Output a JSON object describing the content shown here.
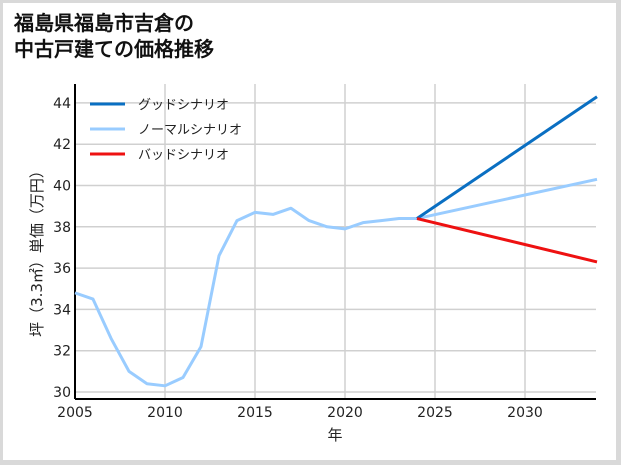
{
  "title_line1": "福島県福島市吉倉の",
  "title_line2": "中古戸建ての価格推移",
  "chart_data": {
    "type": "line",
    "title": "福島県福島市吉倉の中古戸建ての価格推移",
    "xlabel": "年",
    "ylabel": "坪（3.3㎡）単価（万円）",
    "xlim": [
      2005,
      2034
    ],
    "ylim": [
      29.7,
      44.8
    ],
    "x_ticks": [
      2005,
      2010,
      2015,
      2020,
      2025,
      2030
    ],
    "y_ticks": [
      30,
      32,
      34,
      36,
      38,
      40,
      42,
      44
    ],
    "grid": true,
    "legend_position": "upper left",
    "series": [
      {
        "name": "グッドシナリオ",
        "color": "#0a6fc2",
        "x": [
          2024,
          2034
        ],
        "values": [
          38.4,
          44.3
        ]
      },
      {
        "name": "ノーマルシナリオ",
        "color": "#99ccff",
        "x": [
          2005,
          2006,
          2007,
          2008,
          2009,
          2010,
          2011,
          2012,
          2013,
          2014,
          2015,
          2016,
          2017,
          2018,
          2019,
          2020,
          2021,
          2022,
          2023,
          2024,
          2034
        ],
        "values": [
          34.8,
          34.5,
          32.6,
          31.0,
          30.4,
          30.3,
          30.7,
          32.2,
          36.6,
          38.3,
          38.7,
          38.6,
          38.9,
          38.3,
          38.0,
          37.9,
          38.2,
          38.3,
          38.4,
          38.4,
          40.3
        ]
      },
      {
        "name": "バッドシナリオ",
        "color": "#ee1111",
        "x": [
          2024,
          2034
        ],
        "values": [
          38.4,
          36.3
        ]
      }
    ]
  }
}
